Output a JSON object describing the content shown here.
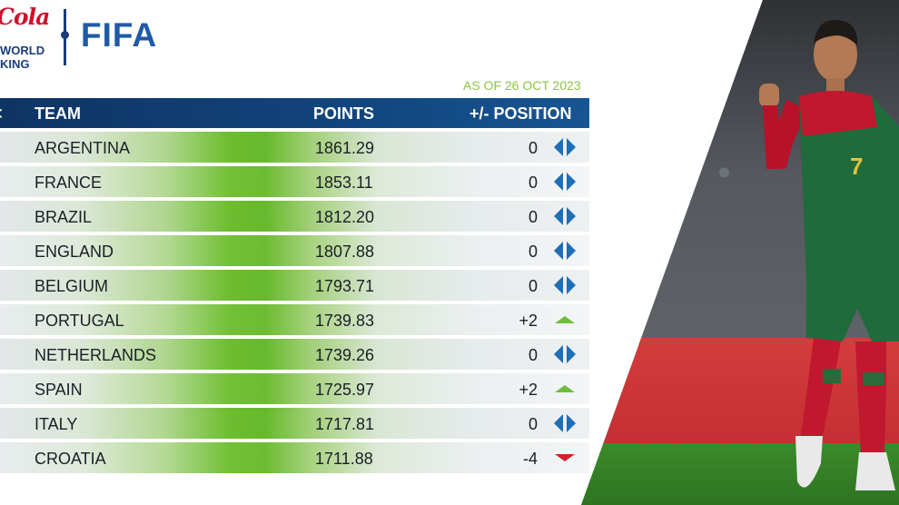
{
  "brand": {
    "sponsor_script": "Cola",
    "sponsor_line1": "WORLD",
    "sponsor_line2": "KING",
    "org": "FIFA"
  },
  "as_of": "AS OF 26 OCT 2023",
  "table": {
    "head_mark": "<",
    "headers": {
      "team": "TEAM",
      "points": "POINTS",
      "position": "+/- POSITION"
    },
    "rows": [
      {
        "team": "ARGENTINA",
        "points": "1861.29",
        "change": "0",
        "indicator": "no-change-icon"
      },
      {
        "team": "FRANCE",
        "points": "1853.11",
        "change": "0",
        "indicator": "no-change-icon"
      },
      {
        "team": "BRAZIL",
        "points": "1812.20",
        "change": "0",
        "indicator": "no-change-icon"
      },
      {
        "team": "ENGLAND",
        "points": "1807.88",
        "change": "0",
        "indicator": "no-change-icon"
      },
      {
        "team": "BELGIUM",
        "points": "1793.71",
        "change": "0",
        "indicator": "no-change-icon"
      },
      {
        "team": "PORTUGAL",
        "points": "1739.83",
        "change": "+2",
        "indicator": "up-arrow-icon"
      },
      {
        "team": "NETHERLANDS",
        "points": "1739.26",
        "change": "0",
        "indicator": "no-change-icon"
      },
      {
        "team": "SPAIN",
        "points": "1725.97",
        "change": "+2",
        "indicator": "up-arrow-icon"
      },
      {
        "team": "ITALY",
        "points": "1717.81",
        "change": "0",
        "indicator": "no-change-icon"
      },
      {
        "team": "CROATIA",
        "points": "1711.88",
        "change": "-4",
        "indicator": "down-arrow-icon"
      }
    ]
  },
  "colors": {
    "header_blue": "#12457e",
    "accent_green": "#8cc63f",
    "arrow_up": "#6cbf3a",
    "arrow_down": "#d6212b",
    "arrow_same": "#1f6fb8"
  },
  "photo": {
    "jersey_number": "7"
  }
}
